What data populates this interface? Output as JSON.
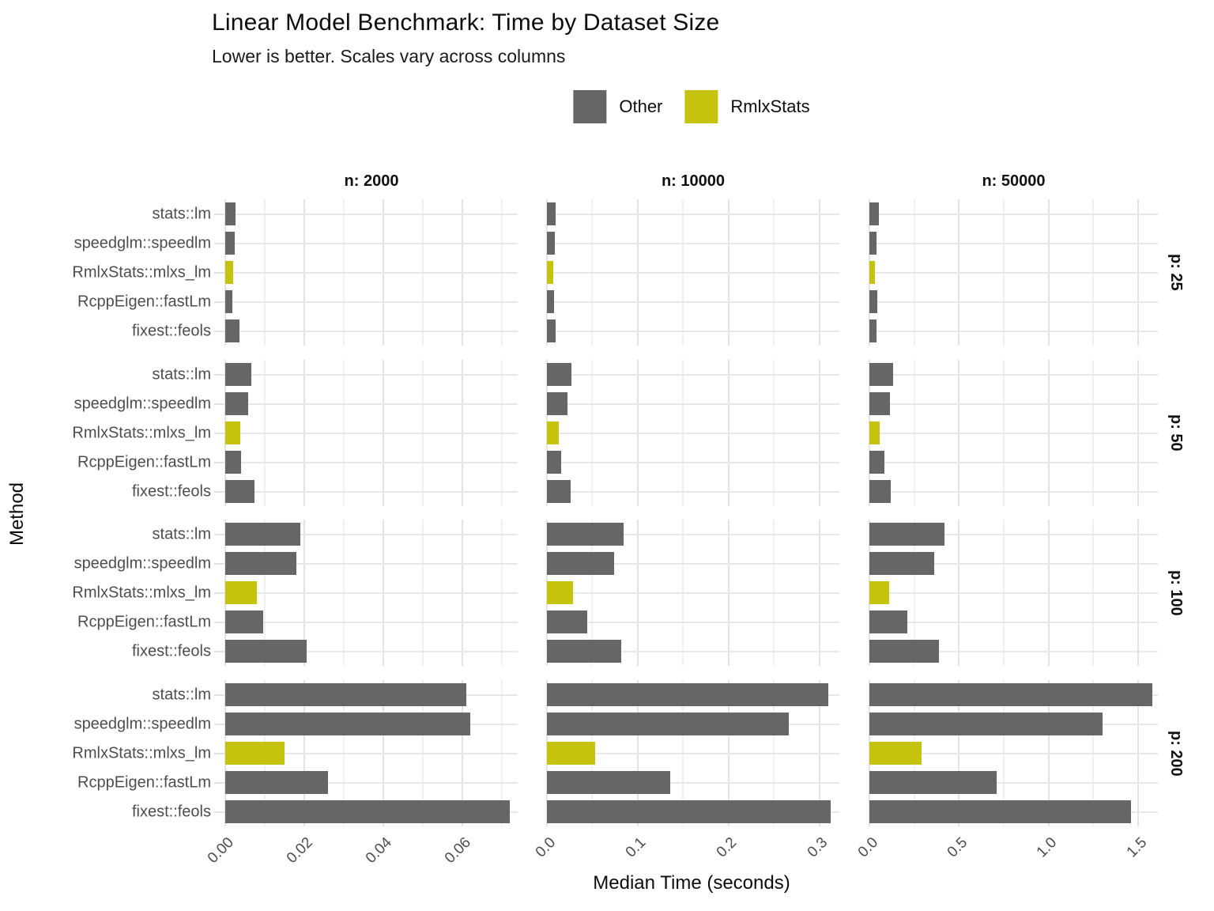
{
  "chart_data": {
    "type": "bar",
    "orientation": "horizontal",
    "title": "Linear Model Benchmark: Time by Dataset Size",
    "subtitle": "Lower is better. Scales vary across columns",
    "xlabel": "Median Time (seconds)",
    "ylabel": "Method",
    "legend": [
      {
        "label": "Other",
        "color": "#666666"
      },
      {
        "label": "RmlxStats",
        "color": "#c6c30e"
      }
    ],
    "grid": true,
    "legend_position": "top-center",
    "methods": [
      "stats::lm",
      "speedglm::speedlm",
      "RmlxStats::mlxs_lm",
      "RcppEigen::fastLm",
      "fixest::feols"
    ],
    "highlight_method": "RmlxStats::mlxs_lm",
    "colors": {
      "other_bar": "#666666",
      "highlight_bar": "#c6c30e",
      "grid_major": "#e3e3e3",
      "grid_minor": "#f0f0f0",
      "axis_text": "#4d4d4d"
    },
    "col_facets": [
      {
        "label": "n: 2000",
        "xlim": [
          0,
          0.074
        ],
        "major_ticks": [
          0,
          0.02,
          0.04,
          0.06
        ],
        "minor_ticks": [
          0.01,
          0.03,
          0.05,
          0.07
        ],
        "tick_labels": [
          "0.00",
          "0.02",
          "0.04",
          "0.06"
        ]
      },
      {
        "label": "n: 10000",
        "xlim": [
          0,
          0.322
        ],
        "major_ticks": [
          0,
          0.1,
          0.2,
          0.3
        ],
        "minor_ticks": [
          0.05,
          0.15,
          0.25
        ],
        "tick_labels": [
          "0.0",
          "0.1",
          "0.2",
          "0.3"
        ]
      },
      {
        "label": "n: 50000",
        "xlim": [
          0,
          1.61
        ],
        "major_ticks": [
          0,
          0.5,
          1.0,
          1.5
        ],
        "minor_ticks": [
          0.25,
          0.75,
          1.25
        ],
        "tick_labels": [
          "0.0",
          "0.5",
          "1.0",
          "1.5"
        ]
      }
    ],
    "row_facets": [
      {
        "label": "p: 25",
        "values_by_col": [
          [
            0.0025,
            0.0023,
            0.002,
            0.0018,
            0.0036
          ],
          [
            0.01,
            0.009,
            0.007,
            0.0075,
            0.0095
          ],
          [
            0.051,
            0.041,
            0.032,
            0.045,
            0.038
          ]
        ]
      },
      {
        "label": "p: 50",
        "values_by_col": [
          [
            0.0065,
            0.0057,
            0.0038,
            0.004,
            0.0073
          ],
          [
            0.027,
            0.023,
            0.013,
            0.016,
            0.026
          ],
          [
            0.132,
            0.115,
            0.056,
            0.082,
            0.12
          ]
        ]
      },
      {
        "label": "p: 100",
        "values_by_col": [
          [
            0.019,
            0.018,
            0.008,
            0.0095,
            0.0205
          ],
          [
            0.084,
            0.074,
            0.029,
            0.044,
            0.082
          ],
          [
            0.42,
            0.36,
            0.11,
            0.21,
            0.39
          ]
        ]
      },
      {
        "label": "p: 200",
        "values_by_col": [
          [
            0.061,
            0.062,
            0.015,
            0.026,
            0.072
          ],
          [
            0.31,
            0.266,
            0.053,
            0.136,
            0.312
          ],
          [
            1.58,
            1.3,
            0.29,
            0.71,
            1.46
          ]
        ]
      }
    ]
  }
}
